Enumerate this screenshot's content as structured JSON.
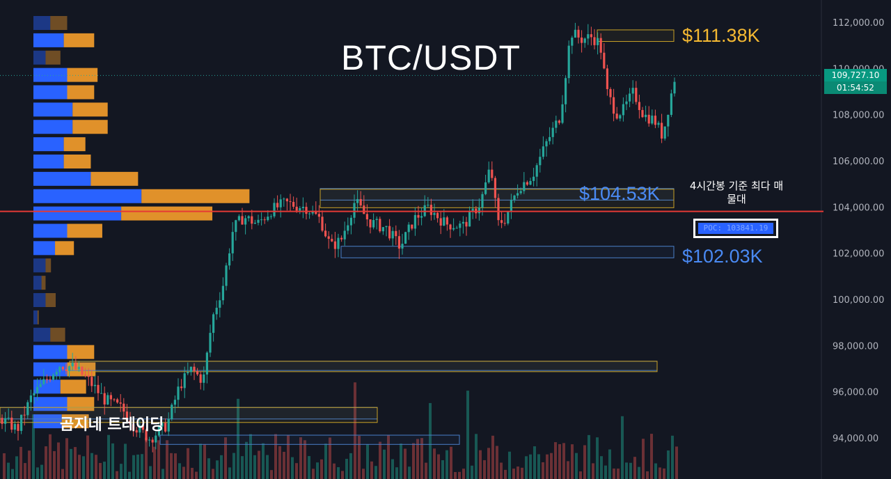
{
  "title": "BTC/USDT",
  "watermark": "곰지네 트레이딩",
  "levels": {
    "resistance": "$111.38K",
    "mid": "$104.53K",
    "support": "$102.03K"
  },
  "annotation": "4시간봉 기준 최다 매물대",
  "poc_label": "POC: 103841.19",
  "current_price": "109,727.10",
  "countdown": "01:54:52",
  "colors": {
    "background": "#131722",
    "up": "#26a69a",
    "down": "#ef5350",
    "profile_buy": "#2962ff",
    "profile_sell": "#e0912a",
    "poc_line": "#e53935",
    "resistance": "#f5b932",
    "support": "#4a8af4"
  },
  "chart_data": {
    "type": "candlestick",
    "symbol": "BTC/USDT",
    "ylim": [
      92800,
      112600
    ],
    "y_ticks": [
      "112,000.00",
      "110,000.00",
      "108,000.00",
      "106,000.00",
      "104,000.00",
      "102,000.00",
      "100,000.00",
      "98,000.00",
      "96,000.00",
      "94,000.00"
    ],
    "y_tick_values": [
      112000,
      110000,
      108000,
      106000,
      104000,
      102000,
      100000,
      98000,
      96000,
      94000
    ],
    "poc_value": 103841.19,
    "last_price": 109727.1,
    "levels": [
      111380,
      104530,
      102030
    ],
    "waypoints": [
      [
        0,
        94900
      ],
      [
        25,
        94400
      ],
      [
        45,
        95800
      ],
      [
        65,
        96500
      ],
      [
        85,
        97200
      ],
      [
        105,
        97100
      ],
      [
        125,
        96600
      ],
      [
        150,
        95700
      ],
      [
        175,
        95300
      ],
      [
        195,
        94500
      ],
      [
        215,
        94000
      ],
      [
        240,
        94600
      ],
      [
        258,
        96300
      ],
      [
        275,
        97000
      ],
      [
        292,
        96500
      ],
      [
        305,
        99200
      ],
      [
        320,
        100600
      ],
      [
        335,
        103100
      ],
      [
        350,
        103600
      ],
      [
        370,
        103300
      ],
      [
        390,
        103900
      ],
      [
        410,
        104200
      ],
      [
        440,
        104000
      ],
      [
        460,
        103500
      ],
      [
        475,
        102300
      ],
      [
        490,
        102600
      ],
      [
        510,
        104300
      ],
      [
        530,
        103400
      ],
      [
        555,
        103100
      ],
      [
        575,
        102300
      ],
      [
        595,
        103500
      ],
      [
        615,
        104000
      ],
      [
        640,
        103300
      ],
      [
        665,
        103200
      ],
      [
        690,
        104200
      ],
      [
        705,
        105800
      ],
      [
        715,
        103300
      ],
      [
        725,
        103500
      ],
      [
        745,
        104900
      ],
      [
        765,
        105400
      ],
      [
        785,
        106800
      ],
      [
        805,
        108000
      ],
      [
        820,
        111600
      ],
      [
        835,
        111300
      ],
      [
        850,
        111400
      ],
      [
        862,
        111100
      ],
      [
        872,
        109000
      ],
      [
        885,
        108100
      ],
      [
        895,
        108200
      ],
      [
        910,
        109000
      ],
      [
        925,
        108000
      ],
      [
        940,
        107800
      ],
      [
        952,
        107100
      ],
      [
        962,
        108600
      ],
      [
        970,
        109727
      ]
    ],
    "volume_profile": [
      {
        "price": 112000,
        "buy": 0.25,
        "sell": 0.25
      },
      {
        "price": 111250,
        "buy": 0.45,
        "sell": 0.45
      },
      {
        "price": 110500,
        "buy": 0.18,
        "sell": 0.22
      },
      {
        "price": 109750,
        "buy": 0.5,
        "sell": 0.45
      },
      {
        "price": 109000,
        "buy": 0.5,
        "sell": 0.4
      },
      {
        "price": 108250,
        "buy": 0.58,
        "sell": 0.52
      },
      {
        "price": 107500,
        "buy": 0.58,
        "sell": 0.52
      },
      {
        "price": 106750,
        "buy": 0.45,
        "sell": 0.32
      },
      {
        "price": 106000,
        "buy": 0.45,
        "sell": 0.4
      },
      {
        "price": 105250,
        "buy": 0.85,
        "sell": 0.7
      },
      {
        "price": 104500,
        "buy": 1.6,
        "sell": 1.6
      },
      {
        "price": 103750,
        "buy": 1.3,
        "sell": 1.35
      },
      {
        "price": 103000,
        "buy": 0.5,
        "sell": 0.52
      },
      {
        "price": 102250,
        "buy": 0.32,
        "sell": 0.28
      },
      {
        "price": 101500,
        "buy": 0.18,
        "sell": 0.08
      },
      {
        "price": 100750,
        "buy": 0.12,
        "sell": 0.06
      },
      {
        "price": 100000,
        "buy": 0.18,
        "sell": 0.15
      },
      {
        "price": 99250,
        "buy": 0.06,
        "sell": 0.02
      },
      {
        "price": 98500,
        "buy": 0.25,
        "sell": 0.22
      },
      {
        "price": 97750,
        "buy": 0.5,
        "sell": 0.4
      },
      {
        "price": 97000,
        "buy": 0.5,
        "sell": 0.42
      },
      {
        "price": 96250,
        "buy": 0.4,
        "sell": 0.38
      },
      {
        "price": 95500,
        "buy": 0.5,
        "sell": 0.4
      },
      {
        "price": 94750,
        "buy": 0.42,
        "sell": 0.4
      }
    ],
    "zones": [
      {
        "from": 111200,
        "to": 111700,
        "kind": "resistance"
      },
      {
        "from": 104330,
        "to": 104830,
        "kind": "support"
      },
      {
        "from": 104000,
        "to": 104800,
        "kind": "resistance"
      },
      {
        "from": 101830,
        "to": 102330,
        "kind": "support"
      },
      {
        "from": 96950,
        "to": 97350,
        "kind": "support"
      },
      {
        "from": 96900,
        "to": 97350,
        "kind": "resistance"
      },
      {
        "from": 94850,
        "to": 95350,
        "kind": "support"
      },
      {
        "from": 94700,
        "to": 95350,
        "kind": "resistance"
      },
      {
        "from": 93750,
        "to": 94150,
        "kind": "support"
      }
    ]
  }
}
